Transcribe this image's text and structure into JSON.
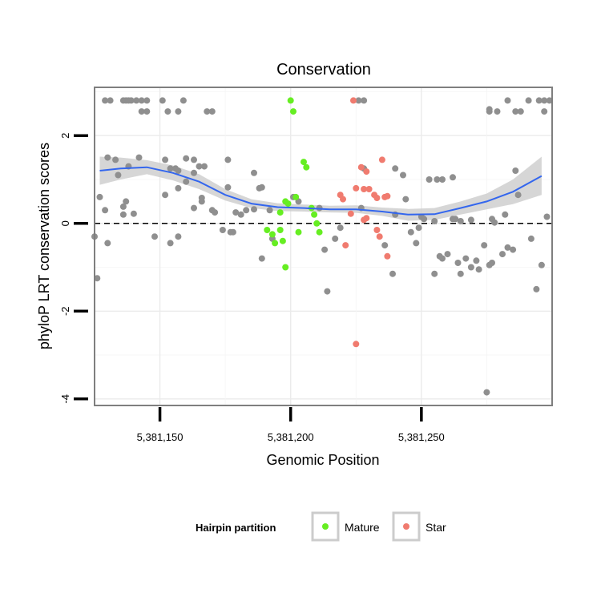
{
  "chart_data": {
    "type": "scatter",
    "title": "Conservation",
    "xlabel": "Genomic Position",
    "ylabel": "phyloP LRT conservation scores",
    "xlim": [
      5381125,
      5381300
    ],
    "ylim": [
      -4.15,
      3.1
    ],
    "x_ticks": [
      5381150,
      5381200,
      5381250
    ],
    "x_tick_labels": [
      "5,381,150",
      "5,381,200",
      "5,381,250"
    ],
    "y_ticks": [
      -4,
      -2,
      0,
      2
    ],
    "y_tick_labels": [
      "-4",
      "-2",
      "0",
      "2"
    ],
    "grid": true,
    "reference_line": {
      "y": 0,
      "style": "dashed"
    },
    "legend": {
      "title": "Hairpin partition",
      "placement": "bottom",
      "entries": [
        {
          "label": "Mature",
          "color": "#66ee22"
        },
        {
          "label": "Star",
          "color": "#f07b6f"
        }
      ]
    },
    "colors": {
      "Other": "#8f8f8f",
      "Mature": "#66ee22",
      "Star": "#f07b6f",
      "smooth": "#3366ee",
      "ribbon": "#cccccc"
    },
    "series": [
      {
        "name": "Other",
        "points": [
          [
            5381129,
            2.8
          ],
          [
            5381131,
            2.8
          ],
          [
            5381136,
            2.8
          ],
          [
            5381137,
            2.8
          ],
          [
            5381138,
            2.8
          ],
          [
            5381139,
            2.8
          ],
          [
            5381141,
            2.8
          ],
          [
            5381143,
            2.8
          ],
          [
            5381145,
            2.8
          ],
          [
            5381151,
            2.8
          ],
          [
            5381159,
            2.8
          ],
          [
            5381226,
            2.8
          ],
          [
            5381228,
            2.8
          ],
          [
            5381283,
            2.8
          ],
          [
            5381291,
            2.8
          ],
          [
            5381295,
            2.8
          ],
          [
            5381297,
            2.8
          ],
          [
            5381143,
            2.55
          ],
          [
            5381145,
            2.55
          ],
          [
            5381153,
            2.55
          ],
          [
            5381157,
            2.55
          ],
          [
            5381168,
            2.55
          ],
          [
            5381170,
            2.55
          ],
          [
            5381276,
            2.55
          ],
          [
            5381279,
            2.55
          ],
          [
            5381286,
            2.55
          ],
          [
            5381288,
            2.55
          ],
          [
            5381297,
            2.55
          ],
          [
            5381130,
            1.5
          ],
          [
            5381133,
            1.45
          ],
          [
            5381138,
            1.3
          ],
          [
            5381142,
            1.5
          ],
          [
            5381152,
            1.45
          ],
          [
            5381154,
            1.25
          ],
          [
            5381160,
            1.48
          ],
          [
            5381163,
            1.45
          ],
          [
            5381165,
            1.3
          ],
          [
            5381167,
            1.3
          ],
          [
            5381163,
            1.15
          ],
          [
            5381134,
            1.1
          ],
          [
            5381157,
            1.2
          ],
          [
            5381156,
            1.25
          ],
          [
            5381157,
            0.8
          ],
          [
            5381176,
            1.45
          ],
          [
            5381186,
            1.15
          ],
          [
            5381228,
            1.25
          ],
          [
            5381240,
            1.25
          ],
          [
            5381243,
            1.1
          ],
          [
            5381253,
            1.0
          ],
          [
            5381256,
            1.0
          ],
          [
            5381258,
            1.0
          ],
          [
            5381262,
            1.05
          ],
          [
            5381286,
            1.2
          ],
          [
            5381127,
            0.6
          ],
          [
            5381129,
            0.3
          ],
          [
            5381136,
            0.2
          ],
          [
            5381137,
            0.5
          ],
          [
            5381136,
            0.38
          ],
          [
            5381140,
            0.22
          ],
          [
            5381152,
            0.65
          ],
          [
            5381160,
            0.95
          ],
          [
            5381166,
            0.5
          ],
          [
            5381166,
            0.58
          ],
          [
            5381163,
            0.35
          ],
          [
            5381170,
            0.3
          ],
          [
            5381171,
            0.25
          ],
          [
            5381176,
            0.82
          ],
          [
            5381179,
            0.25
          ],
          [
            5381181,
            0.2
          ],
          [
            5381183,
            0.3
          ],
          [
            5381186,
            0.32
          ],
          [
            5381188,
            0.8
          ],
          [
            5381189,
            0.82
          ],
          [
            5381192,
            0.3
          ],
          [
            5381201,
            0.6
          ],
          [
            5381203,
            0.5
          ],
          [
            5381211,
            0.35
          ],
          [
            5381227,
            0.35
          ],
          [
            5381240,
            0.2
          ],
          [
            5381244,
            0.55
          ],
          [
            5381250,
            0.15
          ],
          [
            5381251,
            0.1
          ],
          [
            5381255,
            0.05
          ],
          [
            5381262,
            0.1
          ],
          [
            5381263,
            0.1
          ],
          [
            5381265,
            0.05
          ],
          [
            5381269,
            0.08
          ],
          [
            5381277,
            0.1
          ],
          [
            5381278,
            0.02
          ],
          [
            5381282,
            0.2
          ],
          [
            5381287,
            0.65
          ],
          [
            5381125,
            -0.3
          ],
          [
            5381130,
            -0.45
          ],
          [
            5381148,
            -0.3
          ],
          [
            5381154,
            -0.45
          ],
          [
            5381157,
            -0.3
          ],
          [
            5381174,
            -0.15
          ],
          [
            5381177,
            -0.2
          ],
          [
            5381178,
            -0.2
          ],
          [
            5381189,
            -0.8
          ],
          [
            5381193,
            -0.35
          ],
          [
            5381213,
            -0.6
          ],
          [
            5381217,
            -0.35
          ],
          [
            5381219,
            -0.1
          ],
          [
            5381236,
            -0.5
          ],
          [
            5381246,
            -0.2
          ],
          [
            5381248,
            -0.45
          ],
          [
            5381249,
            -0.1
          ],
          [
            5381255,
            -1.15
          ],
          [
            5381257,
            -0.75
          ],
          [
            5381258,
            -0.8
          ],
          [
            5381260,
            -0.7
          ],
          [
            5381264,
            -0.9
          ],
          [
            5381265,
            -1.15
          ],
          [
            5381267,
            -0.8
          ],
          [
            5381269,
            -1.0
          ],
          [
            5381271,
            -0.85
          ],
          [
            5381272,
            -1.05
          ],
          [
            5381274,
            -0.5
          ],
          [
            5381276,
            -0.95
          ],
          [
            5381277,
            -0.9
          ],
          [
            5381281,
            -0.7
          ],
          [
            5381283,
            -0.55
          ],
          [
            5381285,
            -0.6
          ],
          [
            5381292,
            -0.35
          ],
          [
            5381294,
            -1.5
          ],
          [
            5381296,
            -0.95
          ],
          [
            5381298,
            0.15
          ],
          [
            5381299,
            2.8
          ],
          [
            5381276,
            2.6
          ],
          [
            5381126,
            -1.25
          ],
          [
            5381214,
            -1.55
          ],
          [
            5381239,
            -1.15
          ],
          [
            5381275,
            -3.85
          ]
        ]
      },
      {
        "name": "Mature",
        "points": [
          [
            5381200,
            2.8
          ],
          [
            5381201,
            2.55
          ],
          [
            5381205,
            1.4
          ],
          [
            5381206,
            1.28
          ],
          [
            5381202,
            0.6
          ],
          [
            5381198,
            0.5
          ],
          [
            5381196,
            0.25
          ],
          [
            5381208,
            0.35
          ],
          [
            5381209,
            0.2
          ],
          [
            5381210,
            0.0
          ],
          [
            5381191,
            -0.15
          ],
          [
            5381193,
            -0.25
          ],
          [
            5381196,
            -0.15
          ],
          [
            5381194,
            -0.45
          ],
          [
            5381197,
            -0.4
          ],
          [
            5381203,
            -0.2
          ],
          [
            5381211,
            -0.2
          ],
          [
            5381198,
            -1.0
          ],
          [
            5381199,
            0.45
          ]
        ]
      },
      {
        "name": "Star",
        "points": [
          [
            5381224,
            2.8
          ],
          [
            5381227,
            1.28
          ],
          [
            5381229,
            1.18
          ],
          [
            5381235,
            1.45
          ],
          [
            5381225,
            0.8
          ],
          [
            5381228,
            0.78
          ],
          [
            5381230,
            0.78
          ],
          [
            5381232,
            0.65
          ],
          [
            5381233,
            0.58
          ],
          [
            5381236,
            0.6
          ],
          [
            5381237,
            0.62
          ],
          [
            5381219,
            0.65
          ],
          [
            5381220,
            0.55
          ],
          [
            5381223,
            0.22
          ],
          [
            5381229,
            0.12
          ],
          [
            5381233,
            -0.15
          ],
          [
            5381234,
            -0.3
          ],
          [
            5381237,
            -0.75
          ],
          [
            5381221,
            -0.5
          ],
          [
            5381225,
            -2.75
          ],
          [
            5381228,
            0.08
          ]
        ]
      }
    ],
    "smooth": {
      "x": [
        5381127,
        5381135,
        5381145,
        5381155,
        5381165,
        5381175,
        5381185,
        5381195,
        5381205,
        5381215,
        5381225,
        5381235,
        5381245,
        5381255,
        5381265,
        5381275,
        5381285,
        5381296
      ],
      "y": [
        1.2,
        1.25,
        1.28,
        1.15,
        0.95,
        0.65,
        0.45,
        0.37,
        0.35,
        0.32,
        0.32,
        0.27,
        0.2,
        0.21,
        0.35,
        0.5,
        0.72,
        1.08
      ],
      "lower": [
        0.88,
        1.0,
        1.12,
        0.98,
        0.78,
        0.52,
        0.35,
        0.28,
        0.27,
        0.25,
        0.24,
        0.17,
        0.06,
        0.08,
        0.2,
        0.32,
        0.44,
        0.65
      ],
      "upper": [
        1.52,
        1.5,
        1.44,
        1.32,
        1.12,
        0.78,
        0.55,
        0.46,
        0.43,
        0.4,
        0.41,
        0.36,
        0.33,
        0.35,
        0.5,
        0.68,
        1.0,
        1.52
      ]
    }
  }
}
